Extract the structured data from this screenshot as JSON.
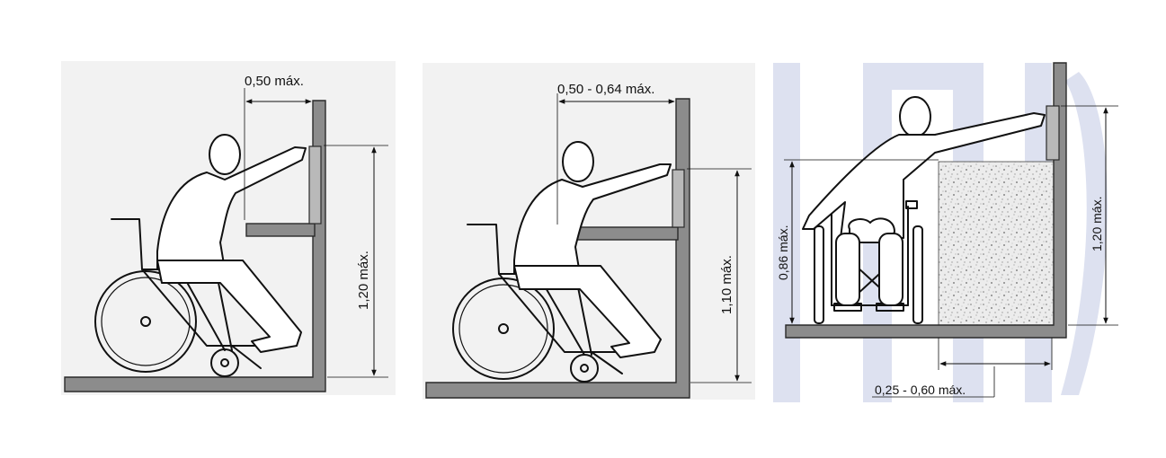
{
  "panels": [
    {
      "reach_label": "0,50 máx.",
      "height_label": "1,20 máx."
    },
    {
      "reach_label": "0,50 - 0,64 máx.",
      "height_label": "1,10 máx."
    },
    {
      "seat_height_label": "0,86 máx.",
      "height_label": "1,20 máx.",
      "depth_label": "0,25 - 0,60 máx."
    }
  ],
  "colors": {
    "wall": "#8c8c8c",
    "panel_bg": "#f2f2f2",
    "watermark": "#dde1f0",
    "hatch": "#e9e9e9"
  }
}
